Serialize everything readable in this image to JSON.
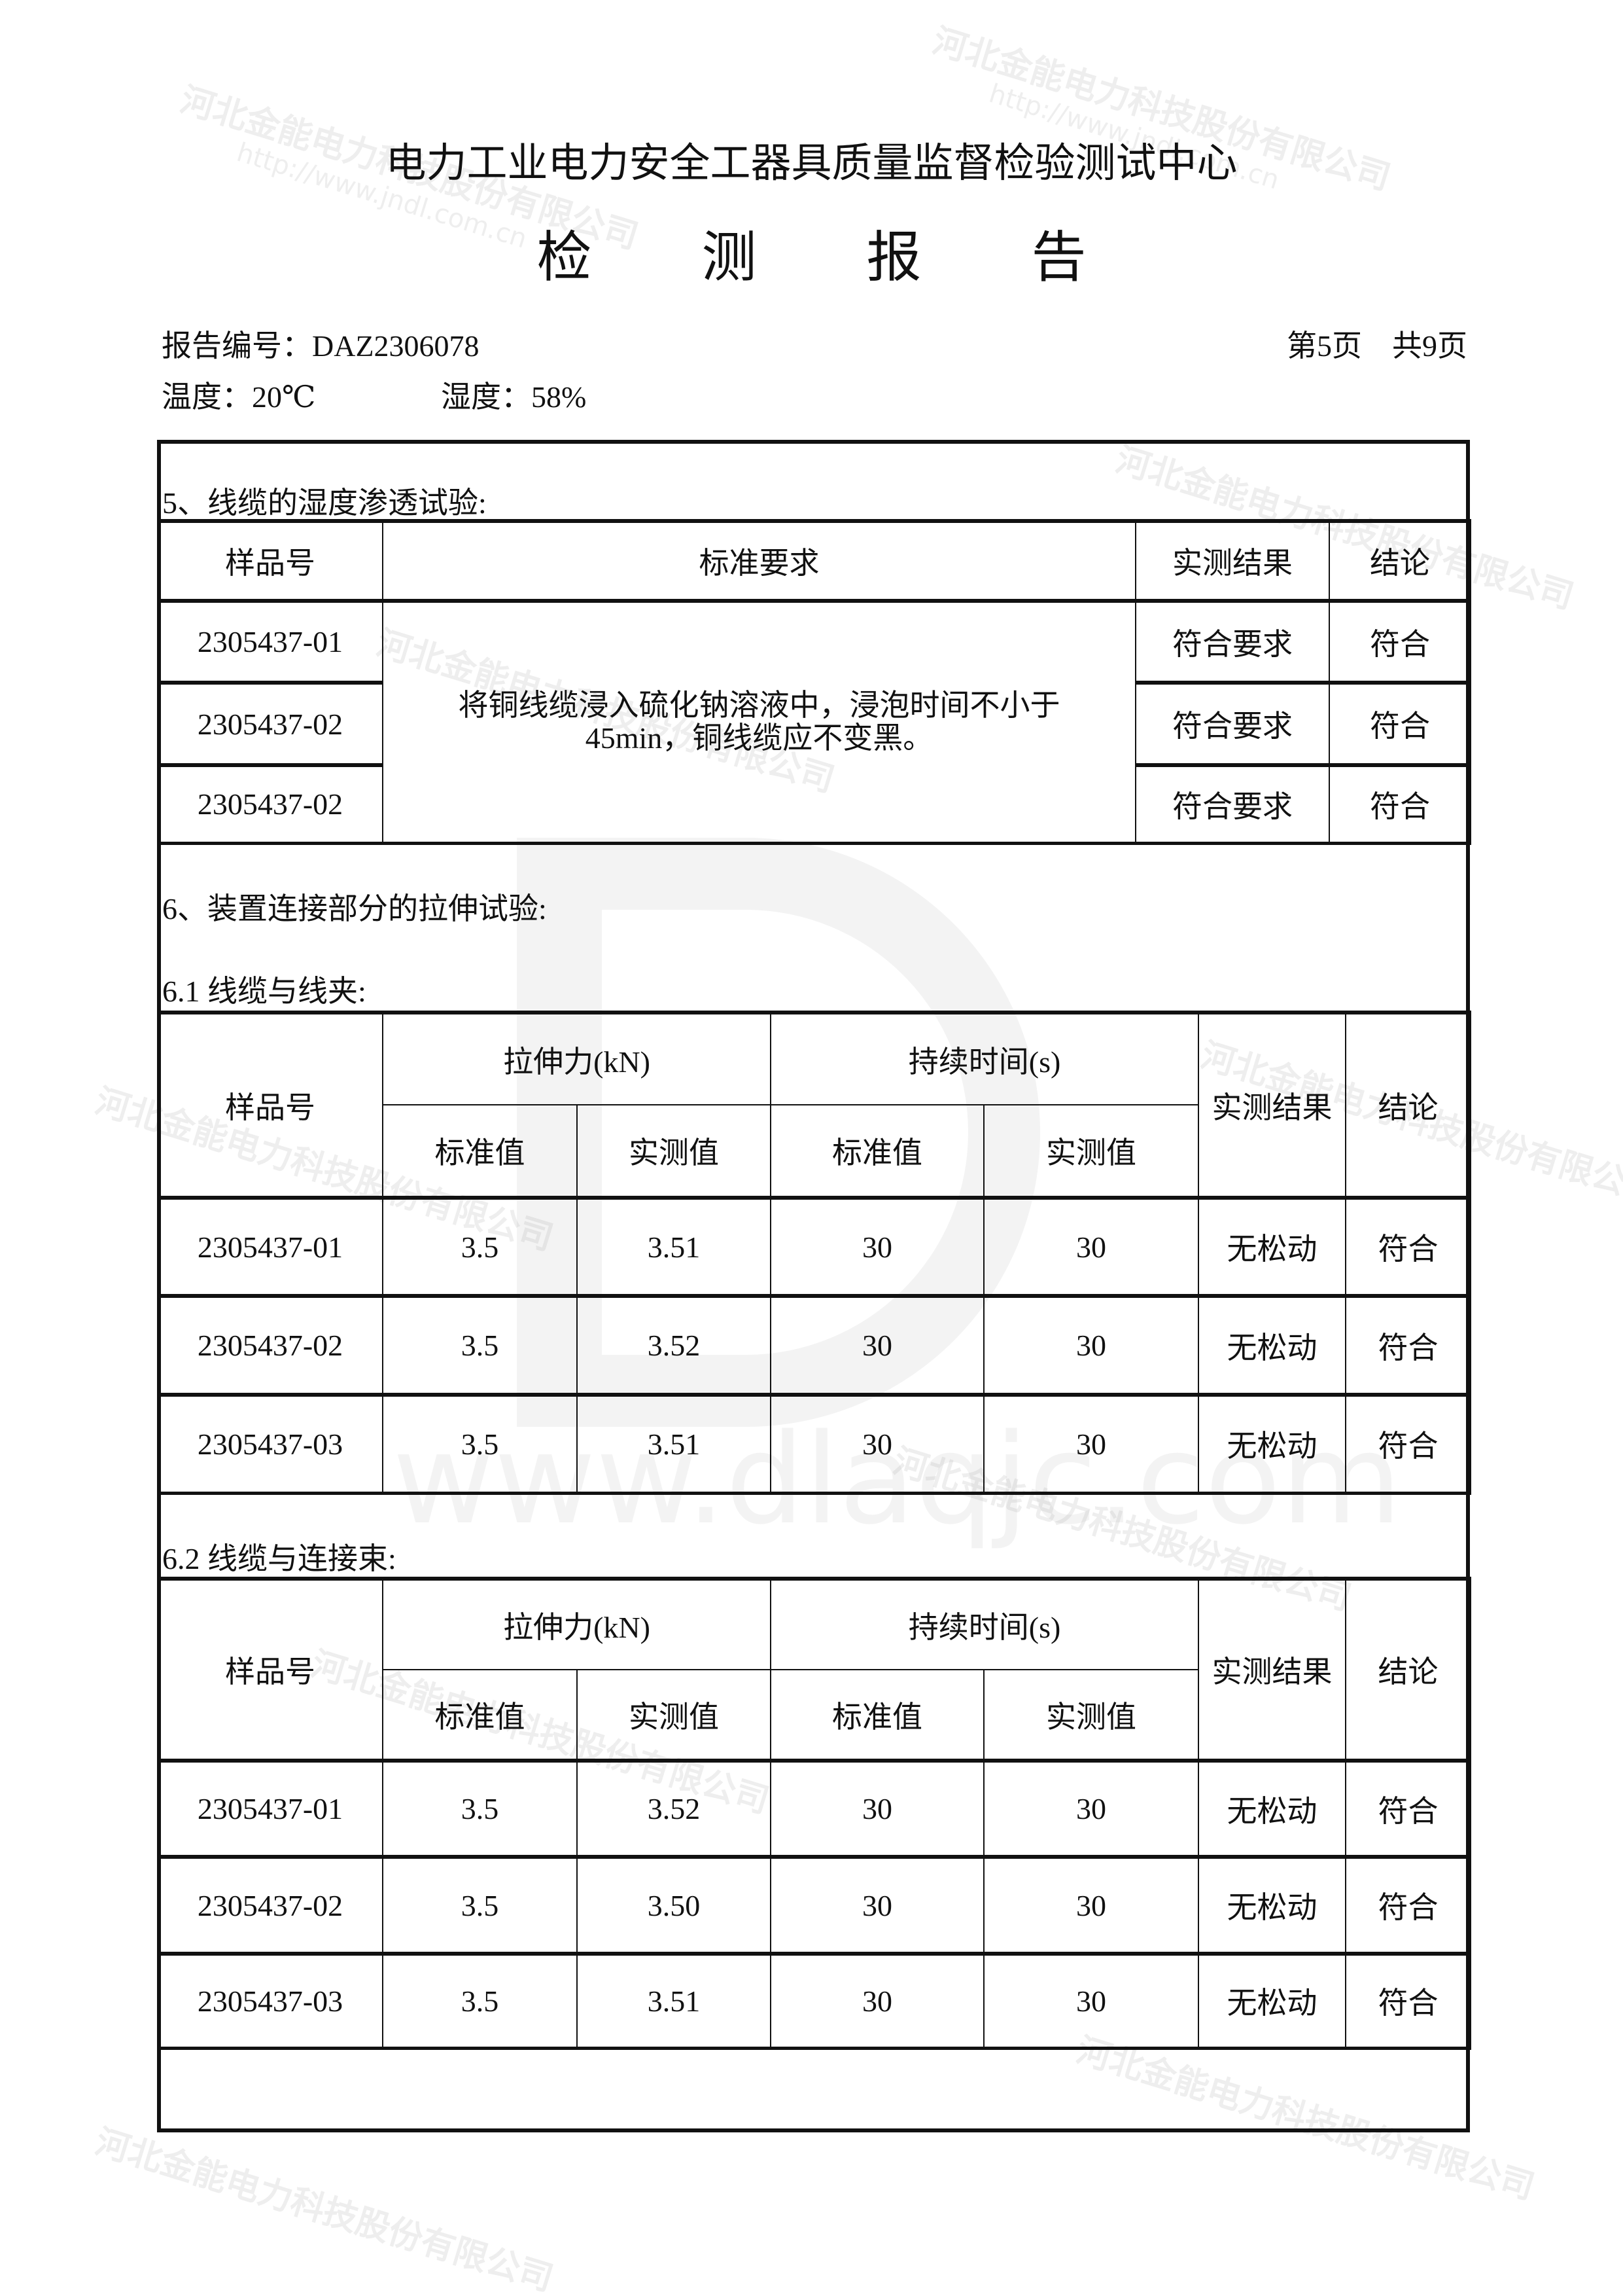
{
  "header": {
    "org_title": "电力工业电力安全工器具质量监督检验测试中心",
    "doc_title": [
      "检",
      "测",
      "报",
      "告"
    ],
    "report_no": "报告编号：DAZ2306078",
    "page_info": "第5页　共9页",
    "temperature": "温度：20℃",
    "humidity": "湿度：58%"
  },
  "watermark": {
    "company": "河北金能电力科技股份有限公司",
    "url": "http://www.jndl.com.cn",
    "site": "www.dlaqjc.com"
  },
  "section5": {
    "title": "5、线缆的湿度渗透试验:",
    "headers": [
      "样品号",
      "标准要求",
      "实测结果",
      "结论"
    ],
    "requirement": "将铜线缆浸入硫化钠溶液中，浸泡时间不小于45min，铜线缆应不变黑。",
    "rows": [
      {
        "sample": "2305437-01",
        "result": "符合要求",
        "conclusion": "符合"
      },
      {
        "sample": "2305437-02",
        "result": "符合要求",
        "conclusion": "符合"
      },
      {
        "sample": "2305437-02",
        "result": "符合要求",
        "conclusion": "符合"
      }
    ]
  },
  "section6": {
    "title": "6、装置连接部分的拉伸试验:",
    "headers": {
      "sample": "样品号",
      "force": "拉伸力(kN)",
      "duration": "持续时间(s)",
      "result": "实测结果",
      "conclusion": "结论",
      "standard": "标准值",
      "measured": "实测值"
    },
    "tables": [
      {
        "title": "6.1 线缆与线夹:",
        "rows": [
          [
            "2305437-01",
            "3.5",
            "3.51",
            "30",
            "30",
            "无松动",
            "符合"
          ],
          [
            "2305437-02",
            "3.5",
            "3.52",
            "30",
            "30",
            "无松动",
            "符合"
          ],
          [
            "2305437-03",
            "3.5",
            "3.51",
            "30",
            "30",
            "无松动",
            "符合"
          ]
        ]
      },
      {
        "title": "6.2 线缆与连接束:",
        "rows": [
          [
            "2305437-01",
            "3.5",
            "3.52",
            "30",
            "30",
            "无松动",
            "符合"
          ],
          [
            "2305437-02",
            "3.5",
            "3.50",
            "30",
            "30",
            "无松动",
            "符合"
          ],
          [
            "2305437-03",
            "3.5",
            "3.51",
            "30",
            "30",
            "无松动",
            "符合"
          ]
        ]
      }
    ]
  }
}
